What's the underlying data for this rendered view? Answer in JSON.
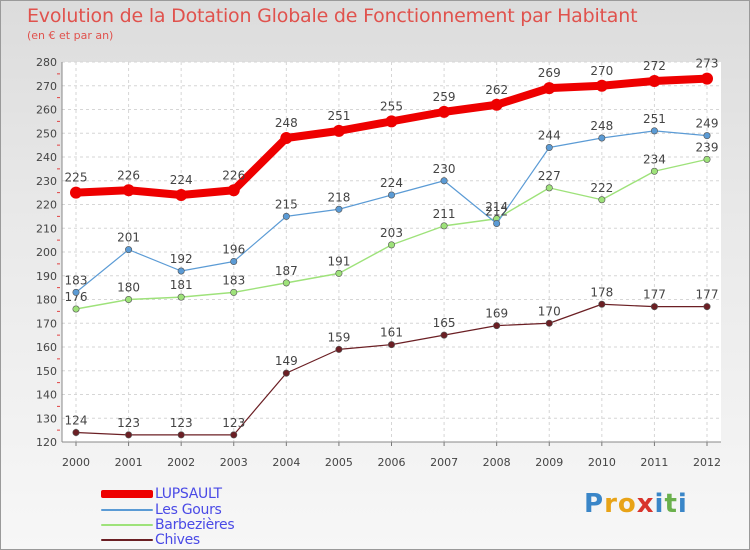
{
  "header": {
    "title": "Evolution de la Dotation Globale de Fonctionnement par Habitant",
    "subtitle": "(en € et par an)"
  },
  "colors": {
    "LUPSAULT": "#ee0000",
    "Les Gours": "#5b9bd5",
    "Barbezières": "#9ee27a",
    "Chives": "#6b1f24"
  },
  "chart_data": {
    "type": "line",
    "title": "Evolution de la Dotation Globale de Fonctionnement par Habitant",
    "subtitle": "(en € et par an)",
    "xlabel": "",
    "ylabel": "",
    "x": [
      "2000",
      "2001",
      "2002",
      "2003",
      "2004",
      "2005",
      "2006",
      "2007",
      "2008",
      "2009",
      "2010",
      "2011",
      "2012"
    ],
    "ylim": [
      120,
      280
    ],
    "yticks": [
      120,
      130,
      140,
      150,
      160,
      170,
      180,
      190,
      200,
      210,
      220,
      230,
      240,
      250,
      260,
      270,
      280
    ],
    "grid": true,
    "legend_position": "bottom-left",
    "series": [
      {
        "name": "LUPSAULT",
        "values": [
          225,
          226,
          224,
          226,
          248,
          251,
          255,
          259,
          262,
          269,
          270,
          272,
          273
        ]
      },
      {
        "name": "Les Gours",
        "values": [
          183,
          201,
          192,
          196,
          215,
          218,
          224,
          230,
          212,
          244,
          248,
          251,
          249
        ]
      },
      {
        "name": "Barbezières",
        "values": [
          176,
          180,
          181,
          183,
          187,
          191,
          203,
          211,
          214,
          227,
          222,
          234,
          239
        ]
      },
      {
        "name": "Chives",
        "values": [
          124,
          123,
          123,
          123,
          149,
          159,
          161,
          165,
          169,
          170,
          178,
          177,
          177
        ]
      }
    ]
  },
  "logo": {
    "letters": [
      "P",
      "r",
      "o",
      "x",
      "i",
      "t",
      "i"
    ],
    "colors": [
      "#3a86c8",
      "#e8a317",
      "#e8a317",
      "#d8342c",
      "#3a86c8",
      "#6ab04c",
      "#3a86c8"
    ]
  }
}
